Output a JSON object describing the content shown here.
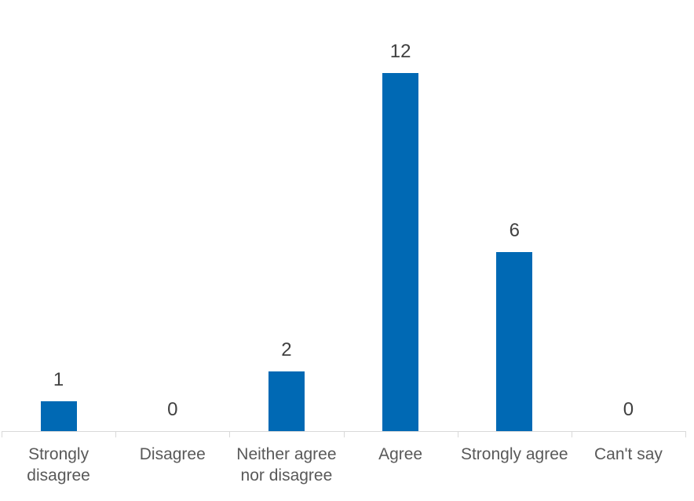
{
  "chart_data": {
    "type": "bar",
    "categories": [
      "Strongly disagree",
      "Disagree",
      "Neither agree nor disagree",
      "Agree",
      "Strongly agree",
      "Can't say"
    ],
    "values": [
      1,
      0,
      2,
      12,
      6,
      0
    ],
    "data_labels": [
      "1",
      "0",
      "2",
      "12",
      "6",
      "0"
    ],
    "title": "",
    "xlabel": "",
    "ylabel": "",
    "ylim": [
      0,
      12
    ],
    "grid": false,
    "legend_position": "none",
    "show_data_labels": true,
    "bar_color": "#0069b4",
    "axis_color": "#d9d9d9",
    "value_label_color": "#404040",
    "category_label_color": "#595959",
    "background_color": "#ffffff"
  }
}
